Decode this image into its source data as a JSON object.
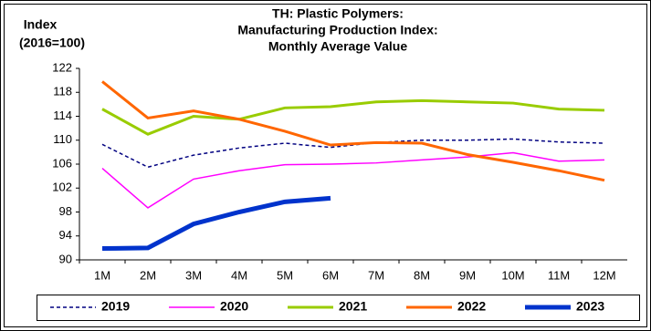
{
  "chart_data": {
    "type": "line",
    "title": [
      "TH: Plastic Polymers:",
      "Manufacturing Production Index:",
      "Monthly Average Value"
    ],
    "y_label": [
      "Index",
      "(2016=100)"
    ],
    "categories": [
      "1M",
      "2M",
      "3M",
      "4M",
      "5M",
      "6M",
      "7M",
      "8M",
      "9M",
      "10M",
      "11M",
      "12M"
    ],
    "series": [
      {
        "name": "2019",
        "color": "#000080",
        "line_style": "dashed",
        "values": [
          109.3,
          105.5,
          107.5,
          108.7,
          109.5,
          108.8,
          109.6,
          110,
          110,
          110.2,
          109.7,
          109.5
        ]
      },
      {
        "name": "2020",
        "color": "#ff00ff",
        "line_style": "solid",
        "values": [
          105.3,
          98.7,
          103.5,
          104.9,
          105.9,
          106,
          106.2,
          106.7,
          107.2,
          107.9,
          106.5,
          106.7
        ]
      },
      {
        "name": "2021",
        "color": "#99cc00",
        "line_style": "solid",
        "values": [
          115.2,
          111,
          114,
          113.5,
          115.4,
          115.6,
          116.4,
          116.6,
          116.4,
          116.2,
          115.2,
          115
        ]
      },
      {
        "name": "2022",
        "color": "#ff6600",
        "line_style": "solid",
        "values": [
          119.8,
          113.7,
          114.9,
          113.5,
          111.5,
          109.2,
          109.6,
          109.5,
          107.6,
          106.3,
          104.9,
          103.3
        ]
      },
      {
        "name": "2023",
        "color": "#0033cc",
        "line_style": "solid",
        "values": [
          91.9,
          92,
          96,
          98,
          99.7,
          100.3,
          null,
          null,
          null,
          null,
          null,
          null
        ]
      }
    ],
    "ylim": [
      90,
      122
    ],
    "yticks": [
      90,
      94,
      98,
      102,
      106,
      110,
      114,
      118,
      122
    ],
    "legend": "bottom"
  }
}
